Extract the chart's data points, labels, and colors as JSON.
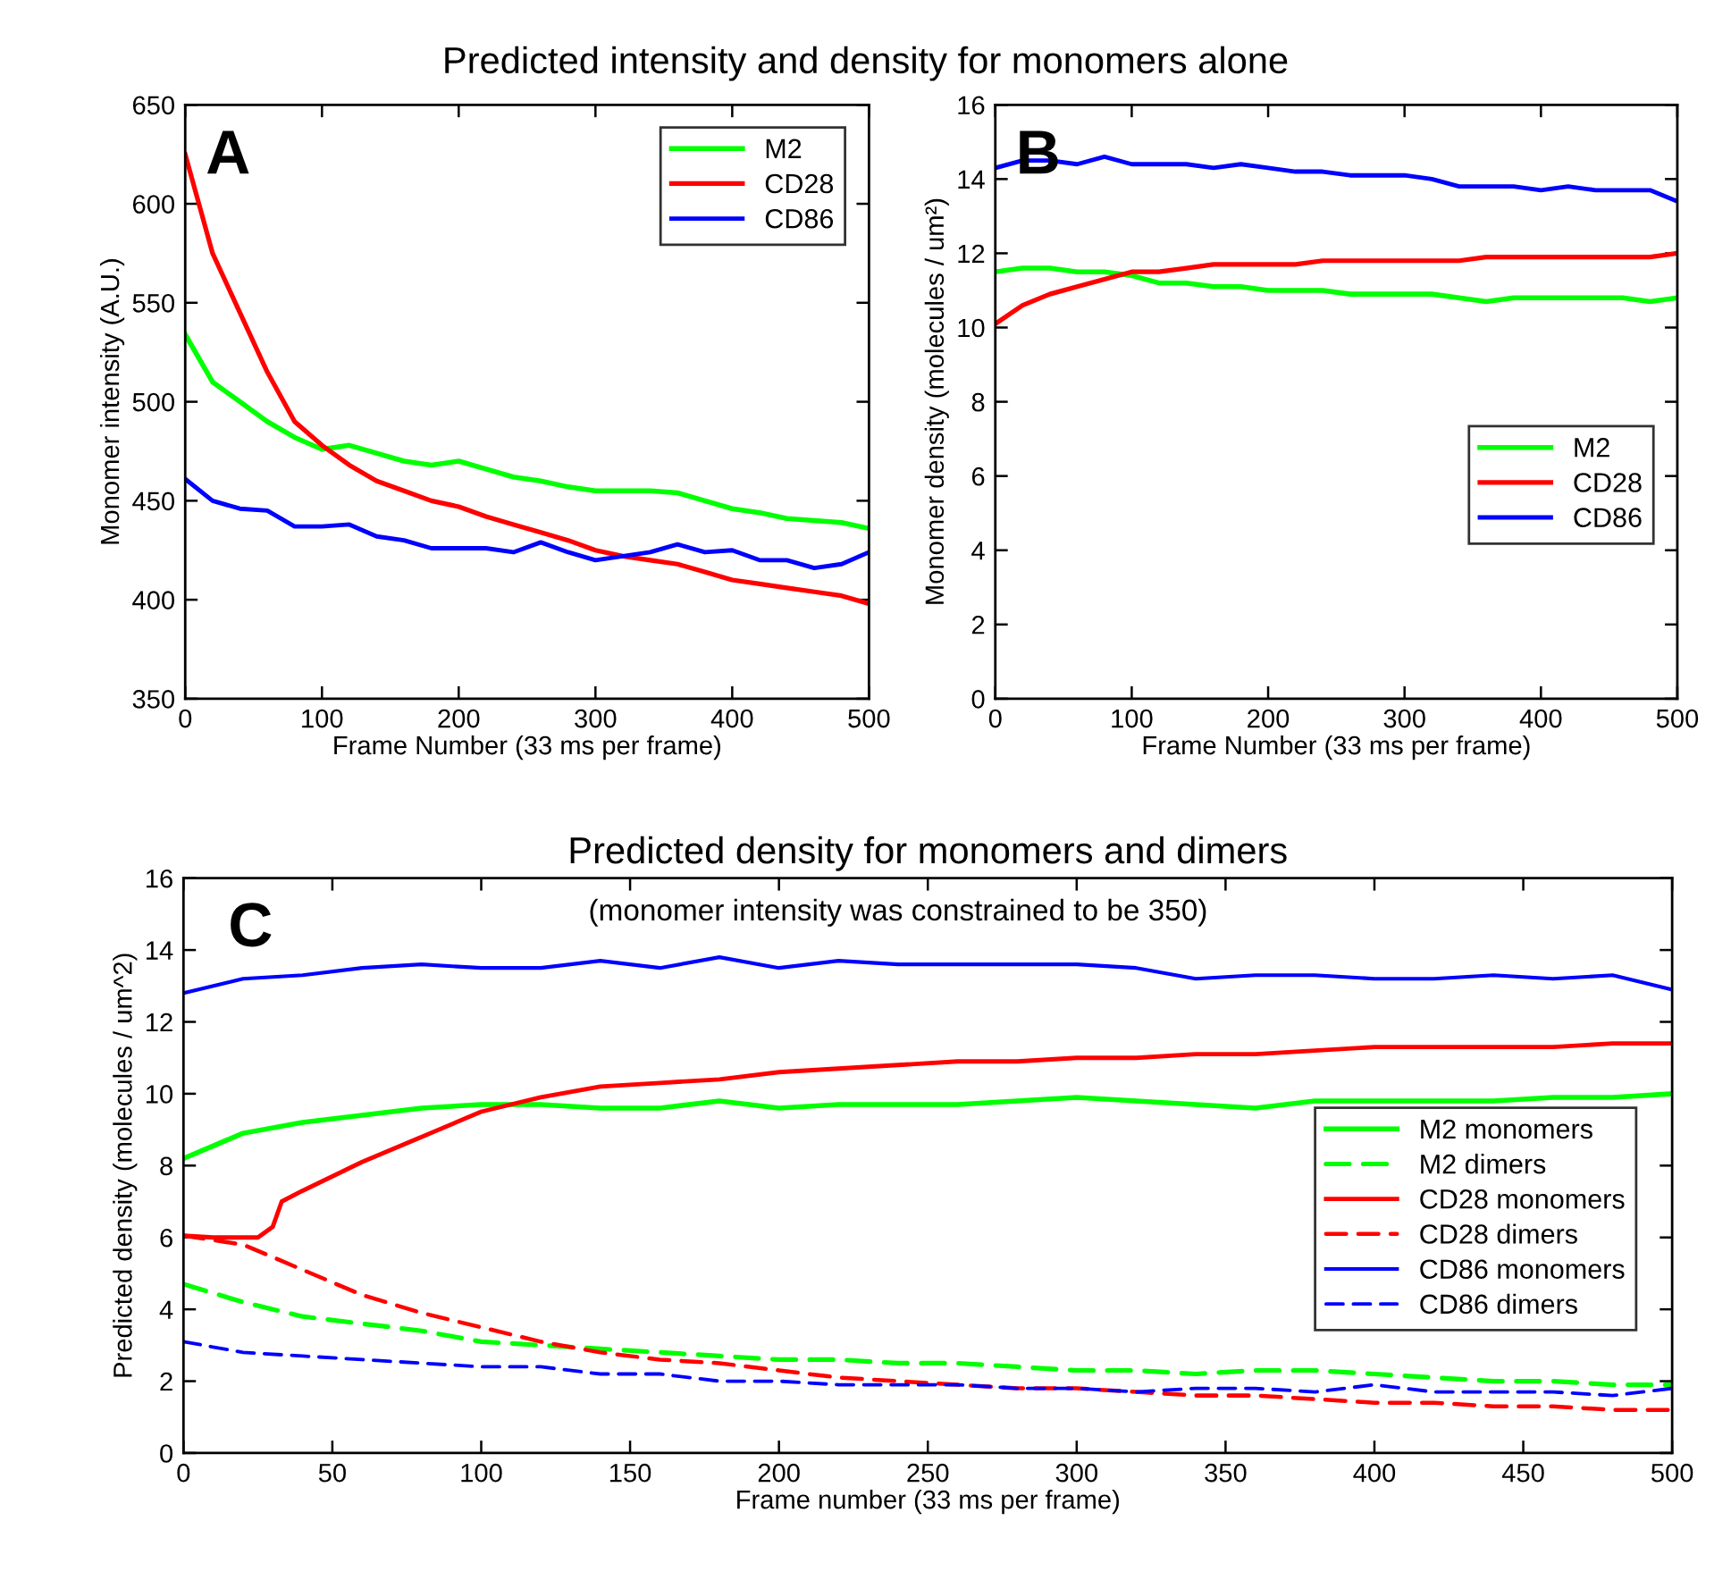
{
  "chart_data": [
    {
      "type": "line",
      "title": "Predicted intensity and density for monomers alone",
      "xlabel": "Frame Number (33 ms per frame)",
      "ylabel": "Monomer intensity (A.U.)",
      "annotations": [
        "A"
      ],
      "x": [
        0,
        20,
        40,
        60,
        80,
        100,
        120,
        140,
        160,
        180,
        200,
        220,
        240,
        260,
        280,
        300,
        320,
        340,
        360,
        380,
        400,
        420,
        440,
        460,
        480,
        500
      ],
      "series": [
        {
          "name": "M2",
          "color": "#00ff00",
          "values": [
            534,
            510,
            500,
            490,
            482,
            476,
            478,
            474,
            470,
            468,
            470,
            466,
            462,
            460,
            457,
            455,
            455,
            455,
            454,
            450,
            446,
            444,
            441,
            440,
            439,
            436
          ]
        },
        {
          "name": "CD28",
          "color": "#ff0000",
          "values": [
            625,
            575,
            545,
            515,
            490,
            478,
            468,
            460,
            455,
            450,
            447,
            442,
            438,
            434,
            430,
            425,
            422,
            420,
            418,
            414,
            410,
            408,
            406,
            404,
            402,
            398
          ]
        },
        {
          "name": "CD86",
          "color": "#0000ff",
          "values": [
            461,
            450,
            446,
            445,
            437,
            437,
            438,
            432,
            430,
            426,
            426,
            426,
            424,
            429,
            424,
            420,
            422,
            424,
            428,
            424,
            425,
            420,
            420,
            416,
            418,
            424
          ]
        }
      ],
      "xlim": [
        0,
        500
      ],
      "xticks": [
        0,
        100,
        200,
        300,
        400,
        500
      ],
      "ylim": [
        350,
        650
      ],
      "yticks": [
        350,
        400,
        450,
        500,
        550,
        600,
        650
      ],
      "legend": "top right",
      "line_style": "solid",
      "grid": false
    },
    {
      "type": "line",
      "xlabel": "Frame Number (33 ms per frame)",
      "ylabel": "Monomer density (molecules / um²)",
      "annotations": [
        "B"
      ],
      "x": [
        0,
        20,
        40,
        60,
        80,
        100,
        120,
        140,
        160,
        180,
        200,
        220,
        240,
        260,
        280,
        300,
        320,
        340,
        360,
        380,
        400,
        420,
        440,
        460,
        480,
        500
      ],
      "series": [
        {
          "name": "M2",
          "color": "#00ff00",
          "values": [
            11.5,
            11.6,
            11.6,
            11.5,
            11.5,
            11.4,
            11.2,
            11.2,
            11.1,
            11.1,
            11.0,
            11.0,
            11.0,
            10.9,
            10.9,
            10.9,
            10.9,
            10.8,
            10.7,
            10.8,
            10.8,
            10.8,
            10.8,
            10.8,
            10.7,
            10.8
          ]
        },
        {
          "name": "CD28",
          "color": "#ff0000",
          "values": [
            10.1,
            10.6,
            10.9,
            11.1,
            11.3,
            11.5,
            11.5,
            11.6,
            11.7,
            11.7,
            11.7,
            11.7,
            11.8,
            11.8,
            11.8,
            11.8,
            11.8,
            11.8,
            11.9,
            11.9,
            11.9,
            11.9,
            11.9,
            11.9,
            11.9,
            12.0
          ]
        },
        {
          "name": "CD86",
          "color": "#0000ff",
          "values": [
            14.3,
            14.5,
            14.5,
            14.4,
            14.6,
            14.4,
            14.4,
            14.4,
            14.3,
            14.4,
            14.3,
            14.2,
            14.2,
            14.1,
            14.1,
            14.1,
            14.0,
            13.8,
            13.8,
            13.8,
            13.7,
            13.8,
            13.7,
            13.7,
            13.7,
            13.4
          ]
        }
      ],
      "xlim": [
        0,
        500
      ],
      "xticks": [
        0,
        100,
        200,
        300,
        400,
        500
      ],
      "ylim": [
        0,
        16
      ],
      "yticks": [
        0,
        2,
        4,
        6,
        8,
        10,
        12,
        14,
        16
      ],
      "legend": "right",
      "line_style": "solid",
      "grid": false
    },
    {
      "type": "line",
      "title": "Predicted density for monomers and dimers",
      "subtitle": "(monomer intensity was constrained to be 350)",
      "xlabel": "Frame number (33 ms per frame)",
      "ylabel": "Predicted density (molecules / um^2)",
      "annotations": [
        "C"
      ],
      "x": [
        0,
        20,
        40,
        60,
        80,
        100,
        120,
        140,
        160,
        180,
        200,
        220,
        240,
        260,
        280,
        300,
        320,
        340,
        360,
        380,
        400,
        420,
        440,
        460,
        480,
        500
      ],
      "series": [
        {
          "name": "M2 monomers",
          "color": "#00ff00",
          "line_style": "solid",
          "values": [
            8.2,
            8.9,
            9.2,
            9.4,
            9.6,
            9.7,
            9.7,
            9.6,
            9.6,
            9.8,
            9.6,
            9.7,
            9.7,
            9.7,
            9.8,
            9.9,
            9.8,
            9.7,
            9.6,
            9.8,
            9.8,
            9.8,
            9.8,
            9.9,
            9.9,
            10.0
          ]
        },
        {
          "name": "M2 dimers",
          "color": "#00ff00",
          "line_style": "dashed",
          "values": [
            4.7,
            4.2,
            3.8,
            3.6,
            3.4,
            3.1,
            3.0,
            2.9,
            2.8,
            2.7,
            2.6,
            2.6,
            2.5,
            2.5,
            2.4,
            2.3,
            2.3,
            2.2,
            2.3,
            2.3,
            2.2,
            2.1,
            2.0,
            2.0,
            1.9,
            1.9
          ]
        },
        {
          "name": "CD28 monomers",
          "color": "#ff0000",
          "line_style": "solid",
          "x": [
            0,
            10,
            20,
            25,
            30,
            33,
            40,
            60,
            80,
            100,
            120,
            140,
            160,
            180,
            200,
            220,
            240,
            260,
            280,
            300,
            320,
            340,
            360,
            380,
            400,
            420,
            440,
            460,
            480,
            500
          ],
          "values": [
            6.05,
            6.0,
            6.0,
            6.0,
            6.3,
            7.0,
            7.3,
            8.1,
            8.8,
            9.5,
            9.9,
            10.2,
            10.3,
            10.4,
            10.6,
            10.7,
            10.8,
            10.9,
            10.9,
            11.0,
            11.0,
            11.1,
            11.1,
            11.2,
            11.3,
            11.3,
            11.3,
            11.3,
            11.4,
            11.4
          ]
        },
        {
          "name": "CD28 dimers",
          "color": "#ff0000",
          "line_style": "dashed",
          "values": [
            6.05,
            5.8,
            5.1,
            4.4,
            3.9,
            3.5,
            3.1,
            2.8,
            2.6,
            2.5,
            2.3,
            2.1,
            2.0,
            1.9,
            1.8,
            1.8,
            1.7,
            1.6,
            1.6,
            1.5,
            1.4,
            1.4,
            1.3,
            1.3,
            1.2,
            1.2
          ]
        },
        {
          "name": "CD86 monomers",
          "color": "#0000ff",
          "line_style": "solid",
          "values": [
            12.8,
            13.2,
            13.3,
            13.5,
            13.6,
            13.5,
            13.5,
            13.7,
            13.5,
            13.8,
            13.5,
            13.7,
            13.6,
            13.6,
            13.6,
            13.6,
            13.5,
            13.2,
            13.3,
            13.3,
            13.2,
            13.2,
            13.3,
            13.2,
            13.3,
            12.9
          ]
        },
        {
          "name": "CD86 dimers",
          "color": "#0000ff",
          "line_style": "dashed",
          "values": [
            3.1,
            2.8,
            2.7,
            2.6,
            2.5,
            2.4,
            2.4,
            2.2,
            2.2,
            2.0,
            2.0,
            1.9,
            1.9,
            1.9,
            1.8,
            1.8,
            1.7,
            1.8,
            1.8,
            1.7,
            1.9,
            1.7,
            1.7,
            1.7,
            1.6,
            1.8
          ]
        }
      ],
      "xlim": [
        0,
        500
      ],
      "xticks": [
        0,
        50,
        100,
        150,
        200,
        250,
        300,
        350,
        400,
        450,
        500
      ],
      "ylim": [
        0,
        16
      ],
      "yticks": [
        0,
        2,
        4,
        6,
        8,
        10,
        12,
        14,
        16
      ],
      "legend": "bottom right",
      "grid": false
    }
  ]
}
